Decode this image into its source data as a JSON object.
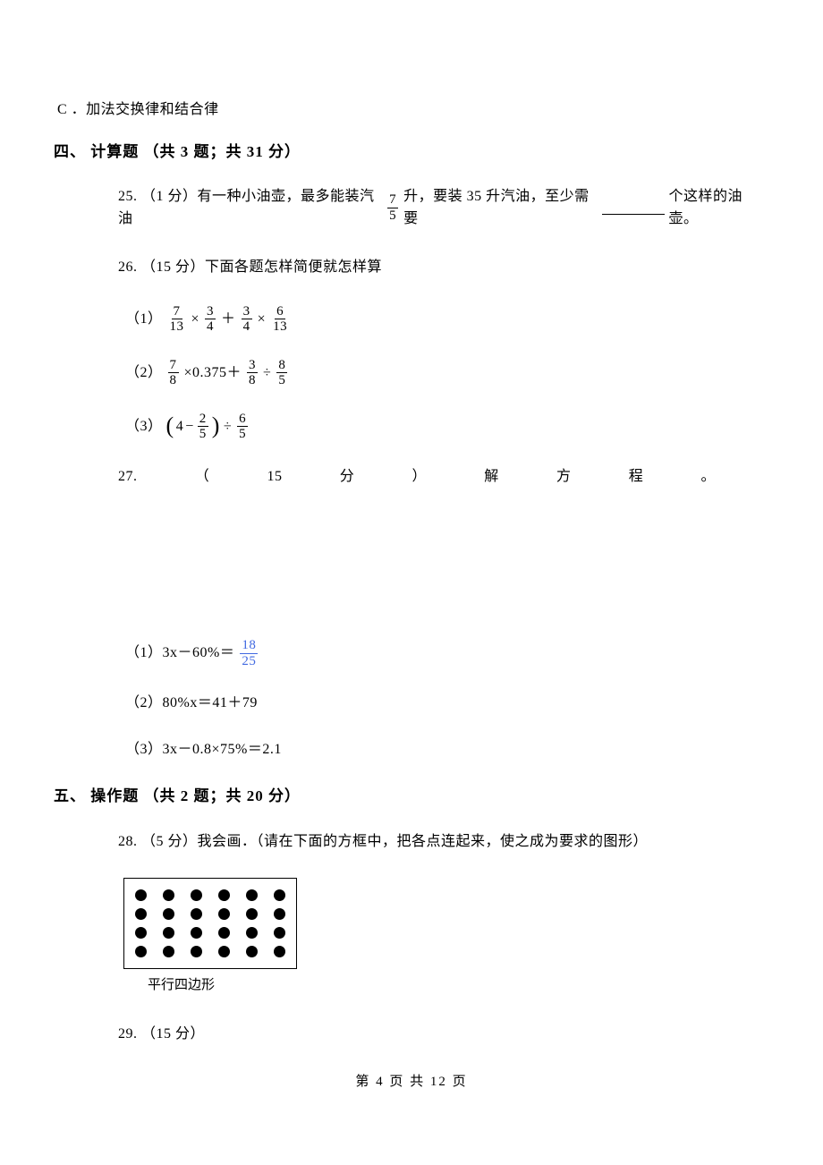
{
  "option_c": "C ．加法交换律和结合律",
  "section4": {
    "heading": "四、 计算题 （共 3 题；共 31 分）",
    "q25_pre": "25. （1 分）有一种小油壶，最多能装汽油 ",
    "q25_frac_num": "7",
    "q25_frac_den": "5",
    "q25_mid": " 升，要装 35 升汽油，至少需要",
    "q25_post": "个这样的油壶。",
    "q26": "26. （15 分）下面各题怎样简便就怎样算",
    "q26_1_label": "（1）",
    "q26_1_f1n": "7",
    "q26_1_f1d": "13",
    "q26_1_f2n": "3",
    "q26_1_f2d": "4",
    "q26_1_f3n": "3",
    "q26_1_f3d": "4",
    "q26_1_f4n": "6",
    "q26_1_f4d": "13",
    "q26_2_label": "（2）",
    "q26_2_f1n": "7",
    "q26_2_f1d": "8",
    "q26_2_mid": " ×0.375＋ ",
    "q26_2_f2n": "3",
    "q26_2_f2d": "8",
    "q26_2_div": " ÷ ",
    "q26_2_f3n": "8",
    "q26_2_f3d": "5",
    "q26_3_label": "（3）",
    "q26_3_inner_whole": "4",
    "q26_3_inner_minus": "−",
    "q26_3_inner_fn": "2",
    "q26_3_inner_fd": "5",
    "q26_3_div": "÷",
    "q26_3_f2n": "6",
    "q26_3_f2d": "5",
    "q27_parts": [
      "27.",
      "（",
      "15",
      "分",
      "）",
      "解",
      "方",
      "程",
      "。"
    ],
    "q27_1_pre": "（1）3x－60%＝ ",
    "q27_1_fn": "18",
    "q27_1_fd": "25",
    "q27_2": "（2）80%x＝41＋79",
    "q27_3": "（3）3x－0.8×75%＝2.1"
  },
  "section5": {
    "heading": "五、 操作题 （共 2 题；共 20 分）",
    "q28": "28. （5 分）我会画．（请在下面的方框中，把各点连起来，使之成为要求的图形）",
    "caption": "平行四边形",
    "q29": "29. （15 分）"
  },
  "footer": "第 4 页 共 12 页",
  "symbols": {
    "times": " × ",
    "plus": " ＋ "
  },
  "dotgrid": {
    "rows": 4,
    "cols": 6
  }
}
